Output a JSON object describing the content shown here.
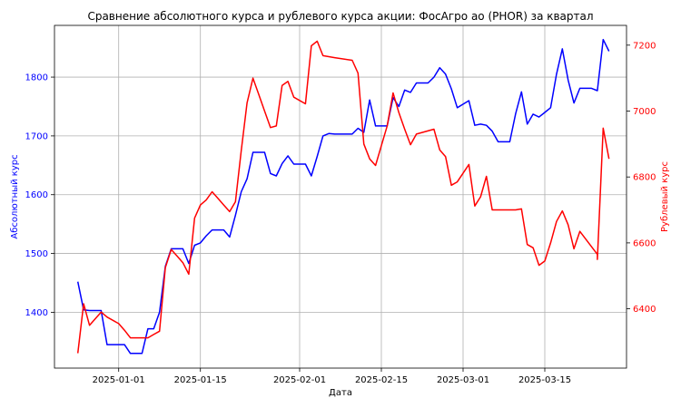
{
  "chart_data": {
    "type": "line",
    "title": "Сравнение абсолютного курса и рублевого курса акции: ФосАгро ао (PHOR) за квартал",
    "xlabel": "Дата",
    "ylabel_left": "Абсолютный курс",
    "ylabel_right": "Рублевый курс",
    "xlim": [
      "2024-12-21",
      "2025-03-29"
    ],
    "ylim_left": [
      1305,
      1888
    ],
    "ylim_right": [
      6220,
      7260
    ],
    "x_ticks": [
      "2025-01-01",
      "2025-01-15",
      "2025-02-01",
      "2025-02-15",
      "2025-03-01",
      "2025-03-15"
    ],
    "y_ticks_left": [
      1400,
      1500,
      1600,
      1700,
      1800
    ],
    "y_ticks_right": [
      6400,
      6600,
      6800,
      7000,
      7200
    ],
    "grid": true,
    "colors": {
      "left": "#0000ff",
      "right": "#ff0000"
    },
    "series": [
      {
        "axis": "left",
        "color": "#0000ff",
        "points": [
          [
            "2024-12-25",
            1452
          ],
          [
            "2024-12-26",
            1404
          ],
          [
            "2024-12-27",
            1403
          ],
          [
            "2024-12-28",
            1403
          ],
          [
            "2024-12-29",
            1403
          ],
          [
            "2024-12-30",
            1345
          ],
          [
            "2025-01-01",
            1345
          ],
          [
            "2025-01-02",
            1345
          ],
          [
            "2025-01-03",
            1330
          ],
          [
            "2025-01-04",
            1330
          ],
          [
            "2025-01-05",
            1330
          ],
          [
            "2025-01-06",
            1372
          ],
          [
            "2025-01-07",
            1372
          ],
          [
            "2025-01-08",
            1400
          ],
          [
            "2025-01-09",
            1478
          ],
          [
            "2025-01-10",
            1508
          ],
          [
            "2025-01-11",
            1508
          ],
          [
            "2025-01-12",
            1508
          ],
          [
            "2025-01-13",
            1483
          ],
          [
            "2025-01-14",
            1514
          ],
          [
            "2025-01-15",
            1518
          ],
          [
            "2025-01-16",
            1530
          ],
          [
            "2025-01-17",
            1540
          ],
          [
            "2025-01-18",
            1540
          ],
          [
            "2025-01-19",
            1540
          ],
          [
            "2025-01-20",
            1528
          ],
          [
            "2025-01-21",
            1565
          ],
          [
            "2025-01-22",
            1605
          ],
          [
            "2025-01-23",
            1627
          ],
          [
            "2025-01-24",
            1672
          ],
          [
            "2025-01-25",
            1672
          ],
          [
            "2025-01-26",
            1672
          ],
          [
            "2025-01-27",
            1636
          ],
          [
            "2025-01-28",
            1632
          ],
          [
            "2025-01-29",
            1653
          ],
          [
            "2025-01-30",
            1666
          ],
          [
            "2025-01-31",
            1652
          ],
          [
            "2025-02-01",
            1652
          ],
          [
            "2025-02-02",
            1652
          ],
          [
            "2025-02-03",
            1632
          ],
          [
            "2025-02-04",
            1665
          ],
          [
            "2025-02-05",
            1700
          ],
          [
            "2025-02-06",
            1704
          ],
          [
            "2025-02-07",
            1703
          ],
          [
            "2025-02-08",
            1703
          ],
          [
            "2025-02-09",
            1703
          ],
          [
            "2025-02-10",
            1703
          ],
          [
            "2025-02-11",
            1713
          ],
          [
            "2025-02-12",
            1706
          ],
          [
            "2025-02-13",
            1761
          ],
          [
            "2025-02-14",
            1717
          ],
          [
            "2025-02-15",
            1717
          ],
          [
            "2025-02-16",
            1717
          ],
          [
            "2025-02-17",
            1765
          ],
          [
            "2025-02-18",
            1750
          ],
          [
            "2025-02-19",
            1778
          ],
          [
            "2025-02-20",
            1774
          ],
          [
            "2025-02-21",
            1790
          ],
          [
            "2025-02-22",
            1790
          ],
          [
            "2025-02-23",
            1790
          ],
          [
            "2025-02-24",
            1800
          ],
          [
            "2025-02-25",
            1816
          ],
          [
            "2025-02-26",
            1805
          ],
          [
            "2025-02-27",
            1780
          ],
          [
            "2025-02-28",
            1748
          ],
          [
            "2025-03-02",
            1760
          ],
          [
            "2025-03-03",
            1718
          ],
          [
            "2025-03-04",
            1720
          ],
          [
            "2025-03-05",
            1718
          ],
          [
            "2025-03-06",
            1708
          ],
          [
            "2025-03-07",
            1690
          ],
          [
            "2025-03-08",
            1690
          ],
          [
            "2025-03-09",
            1690
          ],
          [
            "2025-03-10",
            1738
          ],
          [
            "2025-03-11",
            1775
          ],
          [
            "2025-03-12",
            1720
          ],
          [
            "2025-03-13",
            1737
          ],
          [
            "2025-03-14",
            1732
          ],
          [
            "2025-03-15",
            1740
          ],
          [
            "2025-03-16",
            1748
          ],
          [
            "2025-03-17",
            1805
          ],
          [
            "2025-03-18",
            1848
          ],
          [
            "2025-03-19",
            1795
          ],
          [
            "2025-03-20",
            1756
          ],
          [
            "2025-03-21",
            1781
          ],
          [
            "2025-03-22",
            1781
          ],
          [
            "2025-03-23",
            1781
          ],
          [
            "2025-03-24",
            1777
          ],
          [
            "2025-03-25",
            1864
          ],
          [
            "2025-03-26",
            1844
          ]
        ]
      },
      {
        "axis": "right",
        "color": "#ff0000",
        "points": [
          [
            "2024-12-25",
            6265
          ],
          [
            "2024-12-26",
            6415
          ],
          [
            "2024-12-27",
            6350
          ],
          [
            "2024-12-28",
            6370
          ],
          [
            "2024-12-29",
            6390
          ],
          [
            "2024-12-30",
            6375
          ],
          [
            "2025-01-01",
            6355
          ],
          [
            "2025-01-02",
            6335
          ],
          [
            "2025-01-03",
            6312
          ],
          [
            "2025-01-04",
            6312
          ],
          [
            "2025-01-05",
            6312
          ],
          [
            "2025-01-06",
            6312
          ],
          [
            "2025-01-07",
            6322
          ],
          [
            "2025-01-08",
            6332
          ],
          [
            "2025-01-09",
            6525
          ],
          [
            "2025-01-10",
            6580
          ],
          [
            "2025-01-11",
            6560
          ],
          [
            "2025-01-12",
            6540
          ],
          [
            "2025-01-13",
            6505
          ],
          [
            "2025-01-14",
            6675
          ],
          [
            "2025-01-15",
            6715
          ],
          [
            "2025-01-16",
            6730
          ],
          [
            "2025-01-17",
            6755
          ],
          [
            "2025-01-18",
            6735
          ],
          [
            "2025-01-19",
            6715
          ],
          [
            "2025-01-20",
            6695
          ],
          [
            "2025-01-21",
            6725
          ],
          [
            "2025-01-22",
            6880
          ],
          [
            "2025-01-23",
            7025
          ],
          [
            "2025-01-24",
            7100
          ],
          [
            "2025-01-25",
            7050
          ],
          [
            "2025-01-26",
            7000
          ],
          [
            "2025-01-27",
            6950
          ],
          [
            "2025-01-28",
            6955
          ],
          [
            "2025-01-29",
            7078
          ],
          [
            "2025-01-30",
            7090
          ],
          [
            "2025-01-31",
            7042
          ],
          [
            "2025-02-02",
            7022
          ],
          [
            "2025-02-03",
            7198
          ],
          [
            "2025-02-04",
            7212
          ],
          [
            "2025-02-05",
            7168
          ],
          [
            "2025-02-07",
            7162
          ],
          [
            "2025-02-10",
            7154
          ],
          [
            "2025-02-11",
            7115
          ],
          [
            "2025-02-12",
            6900
          ],
          [
            "2025-02-13",
            6855
          ],
          [
            "2025-02-14",
            6835
          ],
          [
            "2025-02-15",
            6895
          ],
          [
            "2025-02-16",
            6955
          ],
          [
            "2025-02-17",
            7055
          ],
          [
            "2025-02-18",
            6995
          ],
          [
            "2025-02-19",
            6945
          ],
          [
            "2025-02-20",
            6898
          ],
          [
            "2025-02-21",
            6930
          ],
          [
            "2025-02-24",
            6945
          ],
          [
            "2025-02-25",
            6882
          ],
          [
            "2025-02-26",
            6862
          ],
          [
            "2025-02-27",
            6775
          ],
          [
            "2025-02-28",
            6785
          ],
          [
            "2025-03-02",
            6838
          ],
          [
            "2025-03-03",
            6712
          ],
          [
            "2025-03-04",
            6740
          ],
          [
            "2025-03-05",
            6802
          ],
          [
            "2025-03-06",
            6700
          ],
          [
            "2025-03-07",
            6700
          ],
          [
            "2025-03-10",
            6700
          ],
          [
            "2025-03-11",
            6703
          ],
          [
            "2025-03-12",
            6595
          ],
          [
            "2025-03-13",
            6585
          ],
          [
            "2025-03-14",
            6532
          ],
          [
            "2025-03-15",
            6545
          ],
          [
            "2025-03-16",
            6600
          ],
          [
            "2025-03-17",
            6665
          ],
          [
            "2025-03-18",
            6697
          ],
          [
            "2025-03-19",
            6655
          ],
          [
            "2025-03-20",
            6582
          ],
          [
            "2025-03-21",
            6635
          ],
          [
            "2025-03-24",
            6565
          ],
          [
            "2025-03-24",
            6550
          ],
          [
            "2025-03-25",
            6948
          ],
          [
            "2025-03-26",
            6855
          ]
        ]
      }
    ]
  }
}
